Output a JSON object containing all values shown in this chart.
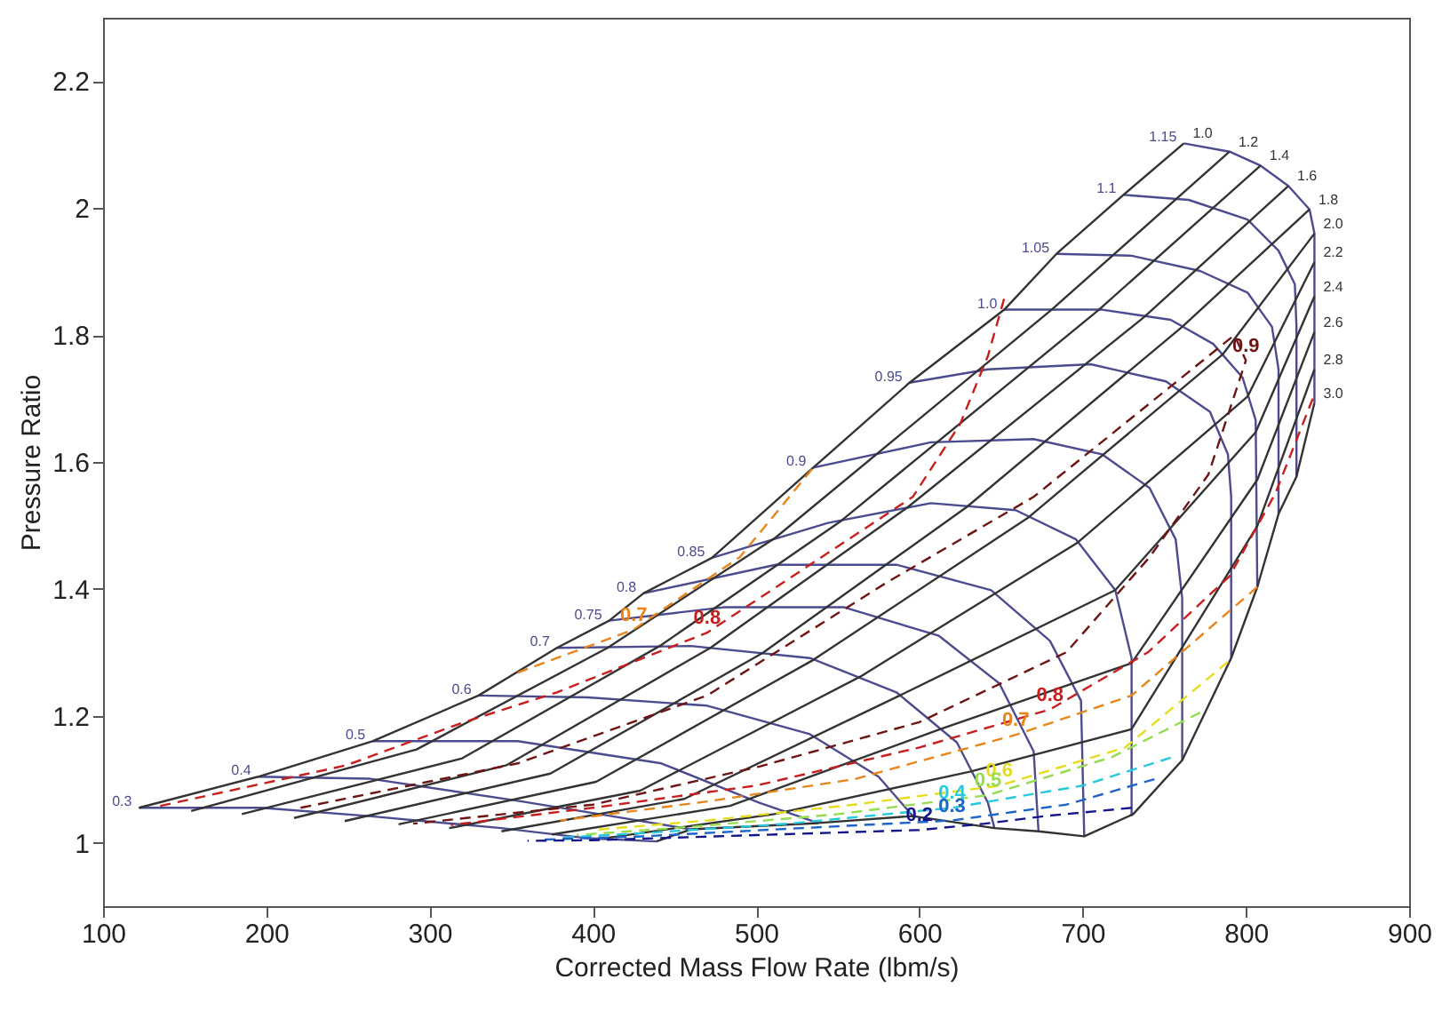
{
  "chart_data": {
    "type": "line",
    "xlabel": "Corrected Mass Flow Rate (lbm/s)",
    "ylabel": "Pressure Ratio",
    "xlim": [
      100,
      900
    ],
    "ylim": [
      0.9,
      2.3
    ],
    "xticks": [
      100,
      200,
      300,
      400,
      500,
      600,
      700,
      800,
      900
    ],
    "yticks": [
      1,
      1.2,
      1.4,
      1.6,
      1.8,
      2,
      2.2
    ],
    "grid": false,
    "legend": false,
    "series": [
      {
        "name": "0.3",
        "color": "#4b4b8f",
        "x": [
          439,
          397,
          344,
          263,
          197,
          122
        ],
        "values": [
          1.002,
          1.007,
          1.023,
          1.042,
          1.055,
          1.055
        ]
      },
      {
        "name": "0.4",
        "color": "#4b4b8f",
        "x": [
          460,
          404,
          354,
          263,
          195
        ],
        "values": [
          1.021,
          1.045,
          1.066,
          1.101,
          1.104
        ]
      },
      {
        "name": "0.5",
        "color": "#4b4b8f",
        "x": [
          538,
          502,
          442,
          354,
          265
        ],
        "values": [
          1.031,
          1.063,
          1.125,
          1.16,
          1.16
        ]
      },
      {
        "name": "0.6",
        "color": "#4b4b8f",
        "x": [
          596,
          575,
          533,
          470,
          397,
          330
        ],
        "values": [
          1.042,
          1.104,
          1.171,
          1.216,
          1.229,
          1.232
        ]
      },
      {
        "name": "0.7",
        "color": "#4b4b8f",
        "x": [
          646,
          642,
          623,
          586,
          533,
          460,
          378
        ],
        "values": [
          1.023,
          1.063,
          1.158,
          1.237,
          1.291,
          1.31,
          1.307
        ]
      },
      {
        "name": "0.75",
        "color": "#4b4b8f",
        "x": [
          673,
          670,
          649,
          612,
          554,
          480,
          410
        ],
        "values": [
          1.018,
          1.144,
          1.251,
          1.326,
          1.371,
          1.371,
          1.35
        ]
      },
      {
        "name": "0.8",
        "color": "#4b4b8f",
        "x": [
          701,
          699,
          680,
          644,
          586,
          512,
          431
        ],
        "values": [
          1.01,
          1.224,
          1.318,
          1.398,
          1.438,
          1.438,
          1.393
        ]
      },
      {
        "name": "0.85",
        "color": "#4b4b8f",
        "x": [
          730,
          730,
          720,
          696,
          659,
          607,
          544,
          473
        ],
        "values": [
          1.042,
          1.291,
          1.398,
          1.478,
          1.524,
          1.535,
          1.504,
          1.449
        ]
      },
      {
        "name": "0.9",
        "color": "#4b4b8f",
        "x": [
          761,
          761,
          757,
          741,
          712,
          670,
          607,
          535
        ],
        "values": [
          1.13,
          1.385,
          1.478,
          1.559,
          1.612,
          1.636,
          1.631,
          1.591
        ]
      },
      {
        "name": "0.95",
        "color": "#4b4b8f",
        "x": [
          791,
          791,
          789,
          778,
          751,
          705,
          642,
          594
        ],
        "values": [
          1.291,
          1.545,
          1.612,
          1.679,
          1.727,
          1.754,
          1.746,
          1.725
        ]
      },
      {
        "name": "1.0",
        "color": "#4b4b8f",
        "x": [
          807,
          806,
          798,
          780,
          754,
          712,
          652
        ],
        "values": [
          1.403,
          1.666,
          1.733,
          1.786,
          1.824,
          1.84,
          1.84
        ]
      },
      {
        "name": "1.05",
        "color": "#4b4b8f",
        "x": [
          820,
          820,
          816,
          801,
          772,
          730,
          684
        ],
        "values": [
          1.518,
          1.746,
          1.813,
          1.867,
          1.901,
          1.925,
          1.928
        ]
      },
      {
        "name": "1.1",
        "color": "#4b4b8f",
        "x": [
          831,
          831,
          830,
          820,
          801,
          765,
          725
        ],
        "values": [
          1.577,
          1.813,
          1.88,
          1.933,
          1.982,
          2.013,
          2.021
        ]
      },
      {
        "name": "1.15",
        "color": "#4b4b8f",
        "x": [
          842,
          842,
          839,
          826,
          809,
          790,
          762
        ],
        "values": [
          1.693,
          1.96,
          1.998,
          2.035,
          2.067,
          2.089,
          2.102
        ]
      },
      {
        "name": "1.0",
        "color": "#333333",
        "x": [
          122,
          195,
          265,
          330,
          378,
          410,
          431,
          473,
          535,
          594,
          652,
          684,
          725,
          762
        ],
        "values": [
          1.055,
          1.104,
          1.16,
          1.232,
          1.307,
          1.35,
          1.393,
          1.449,
          1.591,
          1.725,
          1.84,
          1.928,
          2.021,
          2.102
        ]
      },
      {
        "name": "1.2",
        "color": "#333333",
        "x": [
          154,
          292,
          409,
          512,
          681,
          790
        ],
        "values": [
          1.05,
          1.147,
          1.307,
          1.481,
          1.84,
          2.089
        ]
      },
      {
        "name": "1.4",
        "color": "#333333",
        "x": [
          185,
          320,
          441,
          552,
          710,
          809
        ],
        "values": [
          1.045,
          1.133,
          1.31,
          1.507,
          1.84,
          2.067
        ]
      },
      {
        "name": "1.6",
        "color": "#333333",
        "x": [
          217,
          347,
          472,
          593,
          738,
          826
        ],
        "values": [
          1.039,
          1.122,
          1.307,
          1.529,
          1.829,
          2.035
        ]
      },
      {
        "name": "1.8",
        "color": "#333333",
        "x": [
          248,
          374,
          504,
          629,
          761,
          839
        ],
        "values": [
          1.034,
          1.109,
          1.299,
          1.529,
          1.813,
          1.998
        ]
      },
      {
        "name": "2.0",
        "color": "#333333",
        "x": [
          281,
          402,
          535,
          667,
          786,
          842
        ],
        "values": [
          1.029,
          1.096,
          1.288,
          1.513,
          1.77,
          1.96
        ]
      },
      {
        "name": "2.2",
        "color": "#333333",
        "x": [
          312,
          429,
          564,
          697,
          801,
          842
        ],
        "values": [
          1.023,
          1.082,
          1.262,
          1.473,
          1.703,
          1.915
        ]
      },
      {
        "name": "2.4",
        "color": "#333333",
        "x": [
          344,
          456,
          588,
          720,
          806,
          842
        ],
        "values": [
          1.018,
          1.069,
          1.232,
          1.398,
          1.647,
          1.861
        ]
      },
      {
        "name": "2.6",
        "color": "#333333",
        "x": [
          375,
          484,
          613,
          730,
          807,
          842
        ],
        "values": [
          1.013,
          1.058,
          1.179,
          1.283,
          1.572,
          1.805
        ]
      },
      {
        "name": "2.8",
        "color": "#333333",
        "x": [
          407,
          511,
          631,
          730,
          807,
          842
        ],
        "values": [
          1.007,
          1.045,
          1.112,
          1.179,
          1.499,
          1.746
        ]
      },
      {
        "name": "3.0",
        "color": "#333333",
        "x": [
          439,
          460,
          538,
          596,
          646,
          673,
          701,
          731,
          761,
          791,
          807,
          820,
          831,
          842
        ],
        "values": [
          1.002,
          1.021,
          1.031,
          1.042,
          1.023,
          1.018,
          1.01,
          1.045,
          1.13,
          1.291,
          1.403,
          1.518,
          1.577,
          1.693
        ]
      },
      {
        "name": "0.9",
        "color": "#6e1414",
        "line_style": "dashed",
        "x": [
          221,
          354,
          470,
          580,
          670,
          793,
          800,
          777,
          741,
          690,
          600,
          502,
          400,
          290
        ],
        "values": [
          1.055,
          1.125,
          1.232,
          1.41,
          1.545,
          1.8,
          1.76,
          1.58,
          1.45,
          1.3,
          1.19,
          1.12,
          1.06,
          1.03
        ]
      },
      {
        "name": "0.8",
        "color": "#c81e1e",
        "line_style": "dashed",
        "x": [
          135,
          249,
          320,
          378,
          470,
          596,
          625,
          642,
          652
        ],
        "values": [
          1.058,
          1.122,
          1.189,
          1.237,
          1.331,
          1.545,
          1.66,
          1.767,
          1.858
        ]
      },
      {
        "name": "0.8",
        "color": "#c81e1e",
        "line_style": "dashed",
        "x": [
          841,
          818,
          790,
          740,
          680,
          600,
          500,
          400,
          313
        ],
        "values": [
          1.7,
          1.55,
          1.42,
          1.3,
          1.21,
          1.15,
          1.09,
          1.055,
          1.028
        ]
      },
      {
        "name": "0.7",
        "color": "#e8841a",
        "line_style": "dashed",
        "x": [
          354,
          425,
          490,
          535
        ],
        "values": [
          1.268,
          1.336,
          1.45,
          1.591
        ]
      },
      {
        "name": "0.7",
        "color": "#e8841a",
        "line_style": "dashed",
        "x": [
          807,
          730,
          659,
          560,
          470,
          380
        ],
        "values": [
          1.403,
          1.232,
          1.17,
          1.1,
          1.065,
          1.035
        ]
      },
      {
        "name": "0.6",
        "color": "#e6dc1e",
        "line_style": "dashed",
        "x": [
          789,
          726,
          649,
          560,
          470,
          400
        ],
        "values": [
          1.285,
          1.15,
          1.09,
          1.06,
          1.035,
          1.02
        ]
      },
      {
        "name": "0.5",
        "color": "#96dc50",
        "line_style": "dashed",
        "x": [
          772,
          718,
          642,
          550,
          460,
          390
        ],
        "values": [
          1.205,
          1.135,
          1.075,
          1.045,
          1.025,
          1.012
        ]
      },
      {
        "name": "0.4",
        "color": "#28c8dc",
        "line_style": "dashed",
        "x": [
          754,
          700,
          620,
          520,
          430,
          380
        ],
        "values": [
          1.134,
          1.09,
          1.055,
          1.03,
          1.015,
          1.008
        ]
      },
      {
        "name": "0.3",
        "color": "#1e64c8",
        "line_style": "dashed",
        "x": [
          744,
          690,
          620,
          520,
          430,
          370
        ],
        "values": [
          1.1,
          1.06,
          1.035,
          1.022,
          1.01,
          1.005
        ]
      },
      {
        "name": "0.2",
        "color": "#14148c",
        "line_style": "dashed",
        "x": [
          730,
          677,
          640,
          600,
          500,
          400,
          360
        ],
        "values": [
          1.055,
          1.042,
          1.03,
          1.02,
          1.012,
          1.004,
          1.003
        ]
      }
    ]
  }
}
